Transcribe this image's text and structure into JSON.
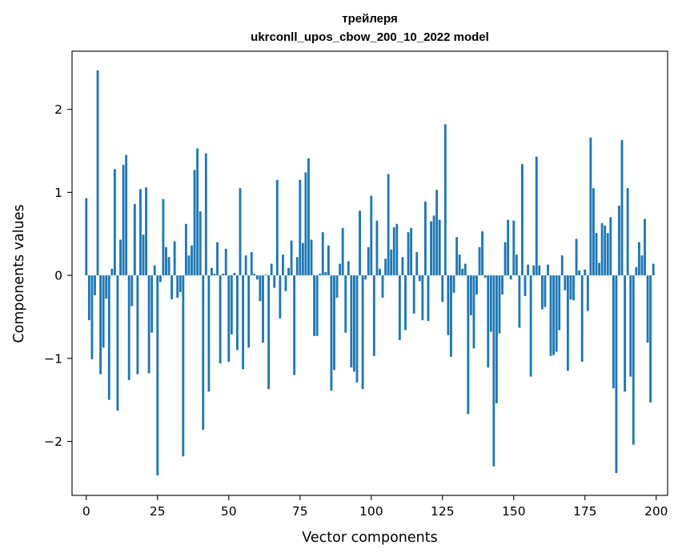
{
  "chart_data": {
    "type": "bar",
    "title": "трейлеря",
    "subtitle": "ukrconll_upos_cbow_200_10_2022 model",
    "xlabel": "Vector components",
    "ylabel": "Components values",
    "xlim": [
      -5,
      204
    ],
    "ylim": [
      -2.65,
      2.7
    ],
    "xticks": [
      0,
      25,
      50,
      75,
      100,
      125,
      150,
      175,
      200
    ],
    "yticks": [
      -2,
      -1,
      0,
      1,
      2
    ],
    "ytick_labels": [
      "−2",
      "−1",
      "0",
      "1",
      "2"
    ],
    "grid": false,
    "legend": "none",
    "bar_color": "#1f77b4",
    "values": [
      0.93,
      -0.54,
      -1.01,
      -0.24,
      2.47,
      -1.19,
      -0.87,
      -0.28,
      -1.5,
      0.08,
      1.28,
      -1.63,
      0.43,
      1.33,
      1.45,
      -1.26,
      -0.37,
      0.86,
      -1.19,
      1.04,
      0.49,
      1.06,
      -1.18,
      -0.69,
      0.12,
      -2.41,
      -0.08,
      0.92,
      0.34,
      0.22,
      -0.29,
      0.41,
      -0.27,
      -0.2,
      -2.18,
      0.62,
      0.24,
      0.36,
      1.27,
      1.53,
      0.77,
      -1.86,
      1.47,
      -1.4,
      0.09,
      0.02,
      0.4,
      -1.06,
      0.02,
      0.32,
      -1.04,
      -0.71,
      0.03,
      -0.9,
      1.05,
      -1.13,
      0.24,
      -0.87,
      0.28,
      0.02,
      -0.05,
      -0.31,
      -0.81,
      0.01,
      -1.37,
      0.14,
      -0.15,
      1.15,
      -0.52,
      0.25,
      -0.19,
      0.09,
      0.42,
      -1.2,
      0.22,
      1.15,
      0.39,
      1.24,
      1.41,
      0.43,
      -0.73,
      -0.73,
      0.02,
      0.52,
      0.04,
      0.36,
      -1.39,
      -1.14,
      -0.27,
      0.14,
      0.57,
      -0.69,
      0.17,
      -1.11,
      -1.16,
      -1.29,
      0.78,
      -1.37,
      -0.05,
      0.34,
      0.96,
      -0.97,
      0.66,
      0.08,
      -0.27,
      0.2,
      1.22,
      0.31,
      0.58,
      0.62,
      -0.78,
      0.22,
      -0.66,
      0.52,
      0.57,
      -0.46,
      0.28,
      -0.07,
      -0.54,
      0.89,
      -0.55,
      0.65,
      0.72,
      1.03,
      0.67,
      -0.32,
      1.82,
      -0.72,
      -0.98,
      -0.21,
      0.46,
      0.25,
      0.08,
      0.14,
      -1.67,
      -0.48,
      -0.88,
      -0.23,
      0.34,
      0.53,
      -0.03,
      -1.11,
      -0.68,
      -2.3,
      -1.54,
      -0.7,
      -0.23,
      0.4,
      0.67,
      -0.05,
      0.66,
      0.25,
      -0.63,
      1.34,
      -0.25,
      0.13,
      -1.22,
      0.12,
      1.43,
      0.12,
      -0.41,
      -0.38,
      0.13,
      -0.97,
      -0.96,
      -0.92,
      -0.66,
      0.24,
      -0.18,
      -1.15,
      -0.29,
      -0.3,
      0.44,
      0.06,
      -1.04,
      0.07,
      -0.43,
      1.66,
      1.05,
      0.51,
      0.15,
      0.63,
      0.6,
      0.51,
      0.7,
      -1.36,
      -2.38,
      0.84,
      1.63,
      -1.4,
      1.05,
      -1.22,
      -2.04,
      0.1,
      0.4,
      0.24,
      0.68,
      -0.81,
      -1.53,
      0.14
    ]
  }
}
